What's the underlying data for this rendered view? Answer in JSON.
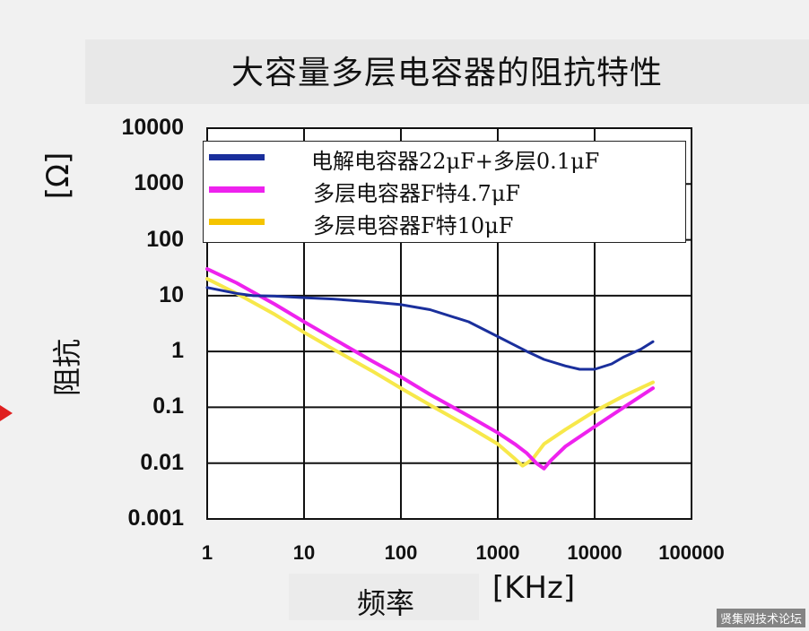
{
  "title": "大容量多层电容器的阻抗特性",
  "y_unit": "[Ω]",
  "y_label": "阻抗",
  "x_label": "频率",
  "x_unit": "[KHz]",
  "watermark": "贤集网技术论坛",
  "colors": {
    "blue": "#1a2f9c",
    "magenta": "#ee22ee",
    "yellow": "#f7e84a",
    "yellow_legend": "#f5c400"
  },
  "chart_data": {
    "type": "line",
    "title": "大容量多层电容器的阻抗特性",
    "xlabel": "频率 [KHz]",
    "ylabel": "阻抗 [Ω]",
    "x_scale": "log",
    "y_scale": "log",
    "xlim": [
      1,
      100000
    ],
    "ylim": [
      0.001,
      10000
    ],
    "x_ticks": [
      "1",
      "10",
      "100",
      "1000",
      "10000",
      "100000"
    ],
    "y_ticks": [
      "10000",
      "1000",
      "100",
      "10",
      "1",
      "0.1",
      "0.01",
      "0.001"
    ],
    "grid": true,
    "legend_position": "top",
    "series": [
      {
        "name": "电解电容器22μF+多层0.1μF",
        "color": "#1a2f9c",
        "x": [
          1,
          2,
          3,
          5,
          10,
          20,
          50,
          100,
          200,
          500,
          1000,
          2000,
          3000,
          5000,
          7000,
          10000,
          15000,
          20000,
          30000,
          40000
        ],
        "y": [
          14,
          11,
          10,
          9.8,
          9.2,
          8.7,
          7.7,
          6.9,
          5.6,
          3.4,
          1.85,
          1.0,
          0.72,
          0.55,
          0.48,
          0.48,
          0.6,
          0.8,
          1.1,
          1.5
        ]
      },
      {
        "name": "多层电容器F特4.7μF",
        "color": "#ee22ee",
        "x": [
          1,
          2,
          3,
          5,
          10,
          20,
          50,
          100,
          200,
          500,
          1000,
          1500,
          2000,
          2500,
          3000,
          3500,
          5000,
          10000,
          20000,
          40000
        ],
        "y": [
          30,
          17,
          11.5,
          7,
          3.4,
          1.7,
          0.68,
          0.35,
          0.17,
          0.07,
          0.035,
          0.022,
          0.015,
          0.01,
          0.008,
          0.011,
          0.02,
          0.045,
          0.1,
          0.22
        ]
      },
      {
        "name": "多层电容器F特10μF",
        "color": "#f7e84a",
        "x": [
          1,
          2,
          3,
          5,
          10,
          20,
          50,
          100,
          200,
          500,
          1000,
          1500,
          1800,
          2000,
          2300,
          3000,
          5000,
          10000,
          20000,
          40000
        ],
        "y": [
          20,
          11,
          7.5,
          4.6,
          2.2,
          1.1,
          0.45,
          0.22,
          0.11,
          0.045,
          0.022,
          0.012,
          0.009,
          0.01,
          0.012,
          0.022,
          0.04,
          0.085,
          0.16,
          0.28
        ]
      }
    ]
  }
}
